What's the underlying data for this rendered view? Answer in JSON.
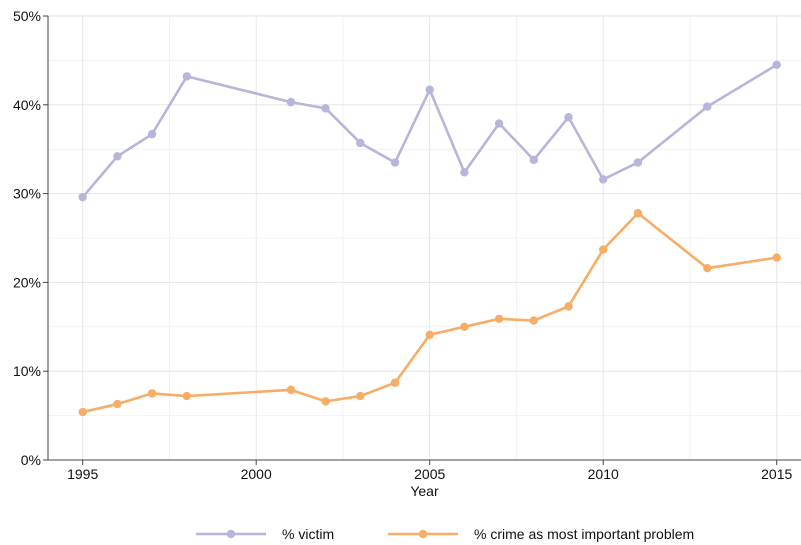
{
  "chart_data": {
    "type": "line",
    "title": "",
    "xlabel": "Year",
    "ylabel": "",
    "xlim": [
      1994,
      2015.7
    ],
    "ylim": [
      0,
      50
    ],
    "x_ticks": [
      {
        "value": 1995,
        "label": "1995"
      },
      {
        "value": 2000,
        "label": "2000"
      },
      {
        "value": 2005,
        "label": "2005"
      },
      {
        "value": 2010,
        "label": "2010"
      },
      {
        "value": 2015,
        "label": "2015"
      }
    ],
    "y_ticks": [
      {
        "value": 0,
        "label": "0%"
      },
      {
        "value": 10,
        "label": "10%"
      },
      {
        "value": 20,
        "label": "20%"
      },
      {
        "value": 30,
        "label": "30%"
      },
      {
        "value": 40,
        "label": "40%"
      },
      {
        "value": 50,
        "label": "50%"
      }
    ],
    "grid": true,
    "legend_position": "bottom",
    "series": [
      {
        "name": "% victim",
        "color": "#b6b6dc",
        "points": [
          {
            "x": 1995,
            "y": 29.6
          },
          {
            "x": 1996,
            "y": 34.2
          },
          {
            "x": 1997,
            "y": 36.7
          },
          {
            "x": 1998,
            "y": 43.2
          },
          {
            "x": 2001,
            "y": 40.3
          },
          {
            "x": 2002,
            "y": 39.6
          },
          {
            "x": 2003,
            "y": 35.7
          },
          {
            "x": 2004,
            "y": 33.5
          },
          {
            "x": 2005,
            "y": 41.7
          },
          {
            "x": 2006,
            "y": 32.4
          },
          {
            "x": 2007,
            "y": 37.9
          },
          {
            "x": 2008,
            "y": 33.8
          },
          {
            "x": 2009,
            "y": 38.6
          },
          {
            "x": 2010,
            "y": 31.6
          },
          {
            "x": 2011,
            "y": 33.5
          },
          {
            "x": 2013,
            "y": 39.8
          },
          {
            "x": 2015,
            "y": 44.5
          }
        ]
      },
      {
        "name": "% crime as most important problem",
        "color": "#f7ad65",
        "points": [
          {
            "x": 1995,
            "y": 5.4
          },
          {
            "x": 1996,
            "y": 6.3
          },
          {
            "x": 1997,
            "y": 7.5
          },
          {
            "x": 1998,
            "y": 7.2
          },
          {
            "x": 2001,
            "y": 7.9
          },
          {
            "x": 2002,
            "y": 6.6
          },
          {
            "x": 2003,
            "y": 7.2
          },
          {
            "x": 2004,
            "y": 8.7
          },
          {
            "x": 2005,
            "y": 14.1
          },
          {
            "x": 2006,
            "y": 15.0
          },
          {
            "x": 2007,
            "y": 15.9
          },
          {
            "x": 2008,
            "y": 15.7
          },
          {
            "x": 2009,
            "y": 17.3
          },
          {
            "x": 2010,
            "y": 23.7
          },
          {
            "x": 2011,
            "y": 27.8
          },
          {
            "x": 2013,
            "y": 21.6
          },
          {
            "x": 2015,
            "y": 22.8
          }
        ]
      }
    ]
  }
}
